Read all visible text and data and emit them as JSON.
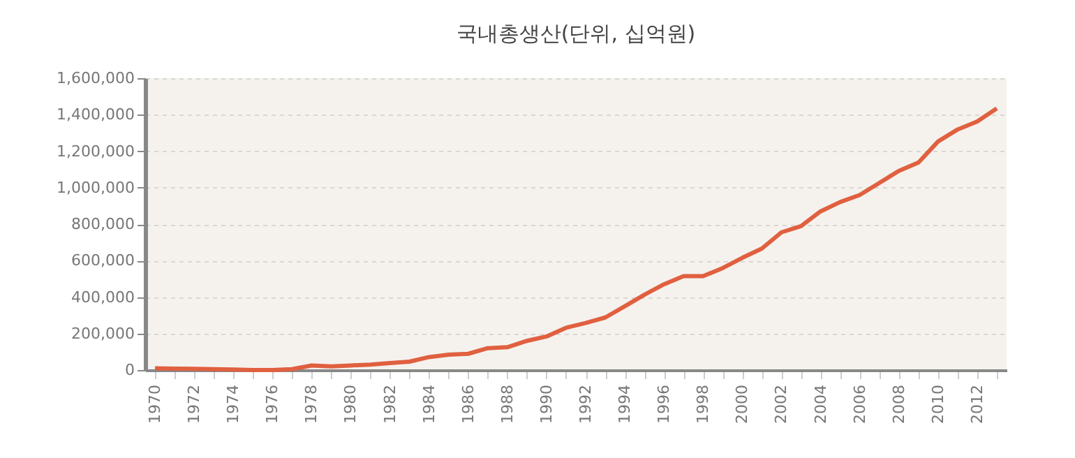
{
  "chart_data": {
    "type": "line",
    "title": "국내총생산(단위, 십억원)",
    "categories": [
      "1970",
      null,
      "1972",
      null,
      "1974",
      null,
      "1976",
      null,
      "1978",
      null,
      "1980",
      null,
      "1982",
      null,
      "1984",
      null,
      "1986",
      null,
      "1988",
      null,
      "1990",
      null,
      "1992",
      null,
      "1994",
      null,
      "1996",
      null,
      "1998",
      null,
      "2000",
      null,
      "2002",
      null,
      "2004",
      null,
      "2006",
      null,
      "2008",
      null,
      "2010",
      null,
      "2012",
      null
    ],
    "series": [
      {
        "color": "#e0603f",
        "values": [
          10000,
          8000,
          7000,
          5000,
          3000,
          0,
          0,
          5000,
          25000,
          20000,
          25000,
          30000,
          38000,
          46000,
          71000,
          84000,
          89000,
          120000,
          125000,
          160000,
          184000,
          232000,
          258000,
          288000,
          350000,
          413000,
          470000,
          515000,
          515000,
          559000,
          615000,
          666000,
          755000,
          789000,
          870000,
          921000,
          960000,
          1026000,
          1092000,
          1138000,
          1253000,
          1319000,
          1363000,
          1434000
        ]
      }
    ],
    "ylim": [
      0,
      1600000
    ],
    "yticks": [
      0,
      {
        "value": 200000,
        "label": "200,000"
      },
      {
        "value": 400000,
        "label": "400,000"
      },
      {
        "value": 600000,
        "label": "600,000"
      },
      {
        "value": 800000,
        "label": "800,000"
      },
      {
        "value": 1000000,
        "label": "1,000,000"
      },
      {
        "value": 1200000,
        "label": "1,200,000"
      },
      {
        "value": 1400000,
        "label": "1,400,000"
      },
      {
        "value": 1600000,
        "label": "1,600,000"
      }
    ],
    "grid": "y"
  }
}
